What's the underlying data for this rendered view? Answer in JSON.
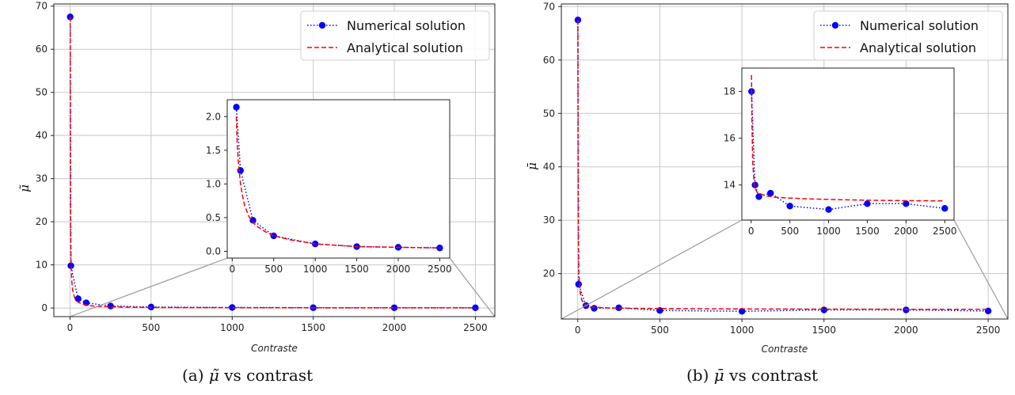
{
  "colors": {
    "numerical": "#0000ff",
    "analytical": "#ff0000",
    "grid": "#c8c8c8",
    "connector": "#9a9a9a"
  },
  "captions": [
    {
      "label": "(a)",
      "symbol": "μ̃",
      "rest": "vs contrast"
    },
    {
      "label": "(b)",
      "symbol": "μ̄",
      "rest": "vs contrast"
    }
  ],
  "chart_data": [
    {
      "type": "line",
      "xlabel": "Contraste",
      "ylabel": "μ̃",
      "xlim": [
        -100,
        2620
      ],
      "ylim": [
        -2,
        70.5
      ],
      "xticks": [
        0,
        500,
        1000,
        1500,
        2000,
        2500
      ],
      "yticks": [
        0,
        10,
        20,
        30,
        40,
        50,
        60,
        70
      ],
      "grid": true,
      "legend_position": "top-right",
      "series": [
        {
          "name": "Numerical solution",
          "style": "dotted with markers",
          "x": [
            1,
            5,
            50,
            100,
            250,
            500,
            1000,
            1500,
            2000,
            2500
          ],
          "y": [
            67.5,
            9.8,
            2.15,
            1.2,
            0.46,
            0.23,
            0.12,
            0.07,
            0.06,
            0.05
          ]
        },
        {
          "name": "Analytical solution",
          "style": "dashed",
          "x": [
            1,
            2,
            3,
            5,
            7,
            10,
            15,
            20,
            30,
            40,
            50,
            75,
            100,
            150,
            200,
            250,
            300,
            400,
            500,
            700,
            1000,
            1500,
            2000,
            2500
          ],
          "y": [
            67.5,
            33.8,
            22.5,
            13.5,
            9.64,
            6.75,
            4.5,
            3.38,
            2.25,
            1.69,
            1.35,
            0.9,
            0.675,
            0.45,
            0.34,
            0.27,
            0.225,
            0.17,
            0.135,
            0.1,
            0.07,
            0.05,
            0.04,
            0.03
          ]
        }
      ],
      "inset": {
        "xlim": [
          -60,
          2620
        ],
        "ylim": [
          -0.1,
          2.25
        ],
        "xticks": [
          0,
          500,
          1000,
          1500,
          2000,
          2500
        ],
        "yticks": [
          0.0,
          0.5,
          1.0,
          1.5,
          2.0
        ],
        "ytick_labels": [
          "0.0",
          "0.5",
          "1.0",
          "1.5",
          "2.0"
        ],
        "zoom_region": {
          "x": [
            0,
            2620
          ],
          "y": [
            -2,
            2.3
          ]
        },
        "series": [
          {
            "name": "Numerical solution",
            "x": [
              50,
              100,
              250,
              500,
              1000,
              1500,
              2000,
              2500
            ],
            "y": [
              2.14,
              1.2,
              0.46,
              0.23,
              0.11,
              0.07,
              0.06,
              0.05
            ]
          },
          {
            "name": "Analytical solution",
            "x": [
              50,
              60,
              75,
              100,
              125,
              150,
              200,
              250,
              300,
              400,
              500,
              700,
              1000,
              1500,
              2000,
              2500
            ],
            "y": [
              2.0,
              1.6,
              1.3,
              1.0,
              0.82,
              0.68,
              0.52,
              0.43,
              0.37,
              0.29,
              0.23,
              0.17,
              0.11,
              0.07,
              0.06,
              0.05
            ]
          }
        ]
      }
    },
    {
      "type": "line",
      "xlabel": "Contraste",
      "ylabel": "μ̄",
      "xlim": [
        -100,
        2620
      ],
      "ylim": [
        11.5,
        70.5
      ],
      "xticks": [
        0,
        500,
        1000,
        1500,
        2000,
        2500
      ],
      "yticks": [
        20,
        30,
        40,
        50,
        60,
        70
      ],
      "grid": true,
      "legend_position": "top-right",
      "series": [
        {
          "name": "Numerical solution",
          "style": "dotted with markers",
          "x": [
            1,
            5,
            50,
            100,
            250,
            500,
            1000,
            1500,
            2000,
            2500
          ],
          "y": [
            67.5,
            18.0,
            14.0,
            13.5,
            13.6,
            13.1,
            12.95,
            13.2,
            13.2,
            13.0
          ]
        },
        {
          "name": "Analytical solution",
          "style": "dashed",
          "x": [
            1,
            2,
            3,
            5,
            7,
            10,
            15,
            25,
            50,
            100,
            200,
            500,
            1000,
            1500,
            2000,
            2500
          ],
          "y": [
            67.5,
            40.0,
            31.0,
            23.5,
            20.0,
            18.5,
            16.5,
            15.0,
            14.0,
            13.7,
            13.55,
            13.45,
            13.38,
            13.35,
            13.33,
            13.33
          ]
        }
      ],
      "inset": {
        "xlim": [
          -120,
          2620
        ],
        "ylim": [
          12.5,
          19.0
        ],
        "xticks": [
          0,
          500,
          1000,
          1500,
          2000,
          2500
        ],
        "yticks": [
          14,
          16,
          18
        ],
        "ytick_labels": [
          "14",
          "16",
          "18"
        ],
        "zoom_region": {
          "x": [
            -100,
            2620
          ],
          "y": [
            11.5,
            19
          ]
        },
        "series": [
          {
            "name": "Numerical solution",
            "x": [
              5,
              50,
              100,
              250,
              500,
              1000,
              1500,
              2000,
              2500
            ],
            "y": [
              18.0,
              14.0,
              13.5,
              13.65,
              13.1,
              12.95,
              13.2,
              13.2,
              13.0
            ]
          },
          {
            "name": "Analytical solution",
            "x": [
              5,
              10,
              20,
              40,
              50,
              75,
              100,
              150,
              200,
              300,
              500,
              700,
              1000,
              1500,
              2000,
              2500
            ],
            "y": [
              18.7,
              16.8,
              15.0,
              14.0,
              13.85,
              13.7,
              13.65,
              13.58,
              13.53,
              13.48,
              13.44,
              13.41,
              13.38,
              13.35,
              13.33,
              13.32
            ]
          }
        ]
      }
    }
  ]
}
